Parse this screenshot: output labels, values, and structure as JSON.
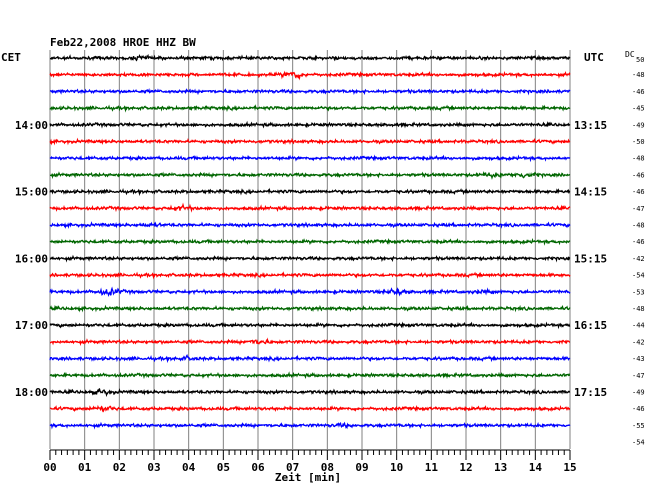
{
  "header": {
    "title": "Feb22,2008   HROE HHZ BW"
  },
  "left_label": "CET",
  "right_label": "UTC",
  "dc_label": "DC",
  "dc_first": "50",
  "chart_data": {
    "type": "line",
    "title": "Feb22,2008   HROE HHZ BW",
    "xlabel": "Zeit [min]",
    "xlim": [
      0,
      15
    ],
    "x_ticks": [
      "00",
      "01",
      "02",
      "03",
      "04",
      "05",
      "06",
      "07",
      "08",
      "09",
      "10",
      "11",
      "12",
      "13",
      "14",
      "15"
    ],
    "grid": true,
    "trace_colors": [
      "#000000",
      "#ff0000",
      "#0000ff",
      "#006600"
    ],
    "left_time_labels": [
      {
        "row": 4,
        "text": "14:00"
      },
      {
        "row": 8,
        "text": "15:00"
      },
      {
        "row": 12,
        "text": "16:00"
      },
      {
        "row": 16,
        "text": "17:00"
      },
      {
        "row": 20,
        "text": "18:00"
      }
    ],
    "right_time_labels": [
      {
        "row": 4,
        "text": "13:15"
      },
      {
        "row": 8,
        "text": "14:15"
      },
      {
        "row": 12,
        "text": "15:15"
      },
      {
        "row": 16,
        "text": "16:15"
      },
      {
        "row": 20,
        "text": "17:15"
      }
    ],
    "dc_offsets": [
      "-48",
      "-46",
      "-45",
      "-49",
      "-50",
      "-48",
      "-46",
      "-46",
      "-47",
      "-48",
      "-46",
      "-42",
      "-54",
      "-53",
      "-48",
      "-44",
      "-42",
      "-43",
      "-47",
      "-49",
      "-46",
      "-55",
      "-54"
    ],
    "events": [
      {
        "row": 0,
        "minute": 2.6,
        "amp": 1.7
      },
      {
        "row": 1,
        "minute": 7.0,
        "amp": 2.6
      },
      {
        "row": 7,
        "minute": 12.7,
        "amp": 2.0
      },
      {
        "row": 7,
        "minute": 13.7,
        "amp": 2.2
      },
      {
        "row": 9,
        "minute": 3.8,
        "amp": 2.0
      },
      {
        "row": 10,
        "minute": 2.9,
        "amp": 1.6
      },
      {
        "row": 14,
        "minute": 1.7,
        "amp": 2.8
      },
      {
        "row": 14,
        "minute": 10.0,
        "amp": 2.4
      },
      {
        "row": 14,
        "minute": 12.5,
        "amp": 1.6
      },
      {
        "row": 17,
        "minute": 6.0,
        "amp": 2.0
      },
      {
        "row": 18,
        "minute": 3.9,
        "amp": 1.7
      },
      {
        "row": 20,
        "minute": 1.5,
        "amp": 2.2
      },
      {
        "row": 21,
        "minute": 1.5,
        "amp": 2.2
      },
      {
        "row": 22,
        "minute": 8.5,
        "amp": 1.5
      }
    ]
  }
}
